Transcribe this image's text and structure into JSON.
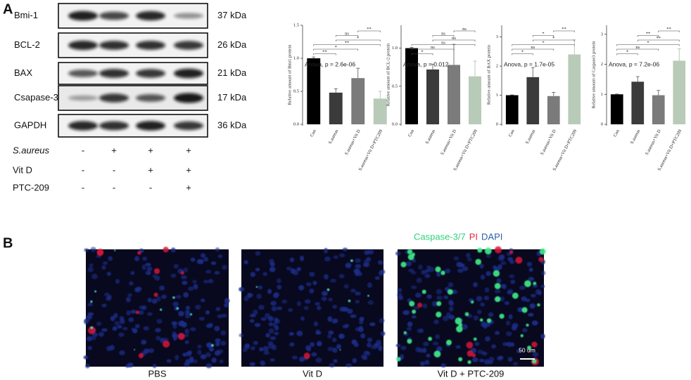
{
  "panel_a": {
    "label": "A",
    "blots": [
      {
        "name": "Bmi-1",
        "size": "37 kDa"
      },
      {
        "name": "BCL-2",
        "size": "26 kDa"
      },
      {
        "name": "BAX",
        "size": "21 kDa"
      },
      {
        "name": "Csapase-3",
        "size": "17 kDa"
      },
      {
        "name": "GAPDH",
        "size": "36 kDa"
      }
    ],
    "conditions": [
      {
        "name": "S.aureus",
        "signs": [
          "-",
          "+",
          "+",
          "+"
        ]
      },
      {
        "name": "Vit D",
        "signs": [
          "-",
          "-",
          "+",
          "+"
        ]
      },
      {
        "name": "PTC-209",
        "signs": [
          "-",
          "-",
          "-",
          "+"
        ]
      }
    ]
  },
  "chart_data": [
    {
      "type": "bar",
      "y_label": "Relative amount of Bmi1 protein",
      "annotation": "Anova, p = 2.6e-06",
      "categories": [
        "Con",
        "S.aureus",
        "S.aureus+Vit D",
        "S.aureus+Vit D+PTC209"
      ],
      "values": [
        1.0,
        0.48,
        0.7,
        0.39
      ],
      "errors": [
        0.02,
        0.06,
        0.15,
        0.11
      ],
      "colors": [
        "#000000",
        "#3b3b3b",
        "#7b7b7b",
        "#b8cbb8"
      ],
      "ylim": [
        0,
        1.5
      ],
      "yticks": [
        {
          "value": 0,
          "label": "0.0"
        },
        {
          "value": 0.5,
          "label": "0.5"
        },
        {
          "value": 1,
          "label": "1.0"
        },
        {
          "value": 1.5,
          "label": "1.5"
        }
      ],
      "comparisons": [
        {
          "pair": [
            2,
            3
          ],
          "label": "**"
        },
        {
          "pair": [
            1,
            2
          ],
          "label": "ns"
        },
        {
          "pair": [
            1,
            3
          ],
          "label": "*"
        },
        {
          "pair": [
            0,
            3
          ],
          "label": "**"
        },
        {
          "pair": [
            0,
            2
          ],
          "label": "*"
        },
        {
          "pair": [
            0,
            1
          ],
          "label": "**"
        }
      ]
    },
    {
      "type": "bar",
      "y_label": "Relative amount of BCL-2 protein",
      "annotation": "Anova, p = 0.012",
      "categories": [
        "Con",
        "S.aureus",
        "S.aureus+Vit D",
        "S.aureus+Vit D+PTC209"
      ],
      "values": [
        1.0,
        0.72,
        0.78,
        0.63
      ],
      "errors": [
        0.01,
        0.07,
        0.27,
        0.2
      ],
      "colors": [
        "#000000",
        "#3b3b3b",
        "#7b7b7b",
        "#b8cbb8"
      ],
      "ylim": [
        0,
        1.3
      ],
      "yticks": [
        {
          "value": 0,
          "label": "0.0"
        },
        {
          "value": 0.5,
          "label": "0.5"
        },
        {
          "value": 1,
          "label": "1.0"
        }
      ],
      "comparisons": [
        {
          "pair": [
            2,
            3
          ],
          "label": "ns"
        },
        {
          "pair": [
            1,
            2
          ],
          "label": "ns"
        },
        {
          "pair": [
            1,
            3
          ],
          "label": "ns"
        },
        {
          "pair": [
            0,
            3
          ],
          "label": "ns"
        },
        {
          "pair": [
            0,
            2
          ],
          "label": "ns"
        },
        {
          "pair": [
            0,
            1
          ],
          "label": "*"
        }
      ]
    },
    {
      "type": "bar",
      "y_label": "Relative amount of BAX protein",
      "annotation": "Anova, p = 1.7e-05",
      "categories": [
        "Con",
        "S.aureus",
        "S.aureus+Vit D",
        "S.aureus+Vit D+PTC209"
      ],
      "values": [
        1.0,
        1.62,
        0.97,
        2.4
      ],
      "errors": [
        0.01,
        0.33,
        0.13,
        0.5
      ],
      "colors": [
        "#000000",
        "#3b3b3b",
        "#7b7b7b",
        "#b8cbb8"
      ],
      "ylim": [
        0,
        3.4
      ],
      "yticks": [
        0,
        1,
        2,
        3
      ],
      "comparisons": [
        {
          "pair": [
            2,
            3
          ],
          "label": "**"
        },
        {
          "pair": [
            1,
            2
          ],
          "label": "*"
        },
        {
          "pair": [
            1,
            3
          ],
          "label": "*"
        },
        {
          "pair": [
            0,
            3
          ],
          "label": "*"
        },
        {
          "pair": [
            0,
            2
          ],
          "label": "ns"
        },
        {
          "pair": [
            0,
            1
          ],
          "label": "*"
        }
      ]
    },
    {
      "type": "bar",
      "y_label": "Relative amount of Caspase3 protein",
      "annotation": "Anova, p = 7.2e-06",
      "categories": [
        "Con",
        "S.aureus",
        "S.aureus+Vit D",
        "S.aureus+Vit D+PTC209"
      ],
      "values": [
        1.0,
        1.42,
        0.97,
        2.12
      ],
      "errors": [
        0.01,
        0.17,
        0.16,
        0.4
      ],
      "colors": [
        "#000000",
        "#3b3b3b",
        "#7b7b7b",
        "#b8cbb8"
      ],
      "ylim": [
        0,
        3.3
      ],
      "yticks": [
        0,
        1,
        2,
        3
      ],
      "comparisons": [
        {
          "pair": [
            2,
            3
          ],
          "label": "**"
        },
        {
          "pair": [
            1,
            2
          ],
          "label": "**"
        },
        {
          "pair": [
            1,
            3
          ],
          "label": "**"
        },
        {
          "pair": [
            0,
            3
          ],
          "label": "*"
        },
        {
          "pair": [
            0,
            2
          ],
          "label": "ns"
        },
        {
          "pair": [
            0,
            1
          ],
          "label": "*"
        }
      ]
    }
  ],
  "panel_b": {
    "label": "B",
    "legend": [
      {
        "text": "Caspase-3/7",
        "color": "#2fd27a"
      },
      {
        "text": "PI",
        "color": "#e0283a"
      },
      {
        "text": "DAPI",
        "color": "#2b5fa8"
      }
    ],
    "images": [
      "PBS",
      "Vit D",
      "Vit D + PTC-209"
    ],
    "scale_bar": "50 um"
  }
}
